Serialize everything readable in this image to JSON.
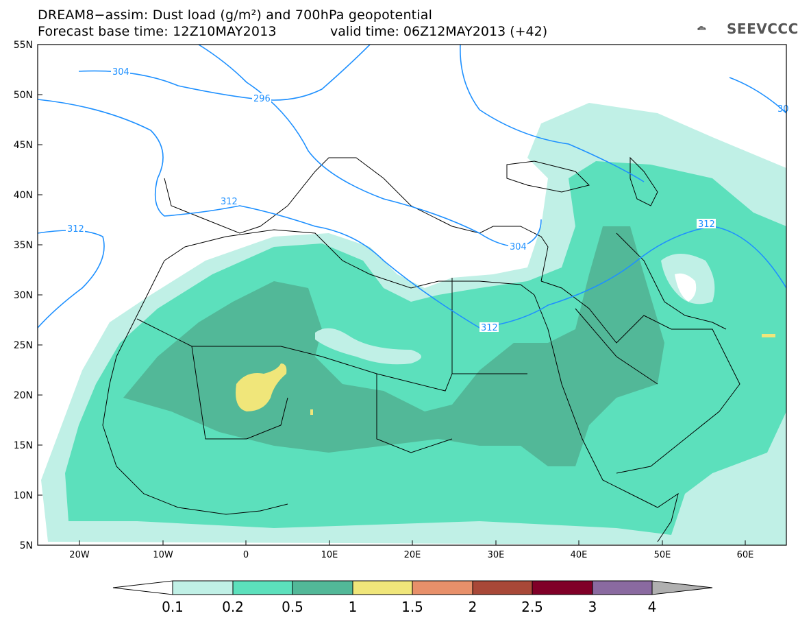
{
  "header": {
    "title_line1": "DREAM8−assim: Dust load (g/m²) and 700hPa geopotential",
    "title_line2": "Forecast base time: 12Z10MAY2013",
    "valid_time": "valid time: 06Z12MAY2013 (+42)"
  },
  "logo": {
    "text": "SEEVCCC",
    "icon": "cloud-logo-icon"
  },
  "map": {
    "lat_labels": [
      "55N",
      "50N",
      "45N",
      "40N",
      "35N",
      "30N",
      "25N",
      "20N",
      "15N",
      "10N",
      "5N"
    ],
    "lon_labels": [
      "20W",
      "10W",
      "0",
      "10E",
      "20E",
      "30E",
      "40E",
      "50E",
      "60E"
    ],
    "contour_labels": [
      "304",
      "296",
      "312",
      "312",
      "304",
      "312",
      "312",
      "30"
    ]
  },
  "colorbar": {
    "levels": [
      "0.1",
      "0.2",
      "0.5",
      "1",
      "1.5",
      "2",
      "2.5",
      "3",
      "4"
    ],
    "colors": [
      "#c0f0e6",
      "#5ce0bc",
      "#52b898",
      "#f0e67a",
      "#e8906a",
      "#a84838",
      "#800028",
      "#8a6aa0",
      "#b0b0b0"
    ]
  }
}
